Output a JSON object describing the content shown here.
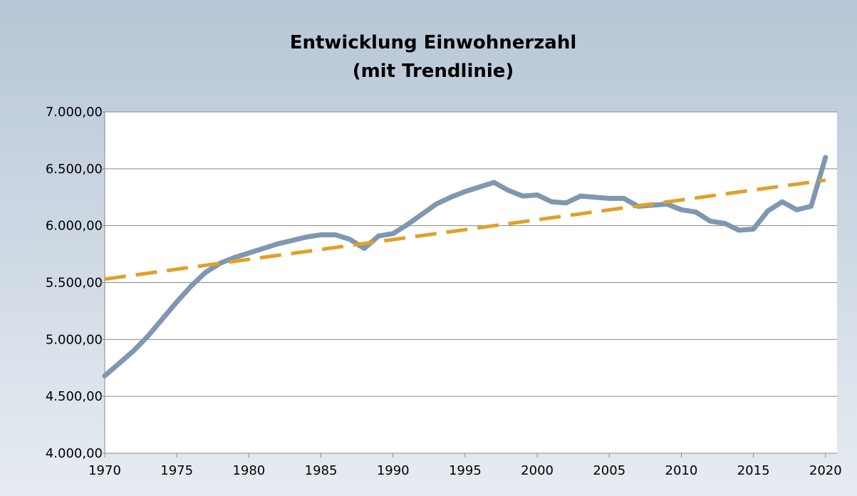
{
  "chart_data": {
    "type": "line",
    "title": [
      "Entwicklung Einwohnerzahl",
      "(mit Trendlinie)"
    ],
    "series": [
      {
        "color": "#7f97b0",
        "dashed": false,
        "x": [
          1970,
          1971,
          1972,
          1973,
          1974,
          1975,
          1976,
          1977,
          1978,
          1979,
          1980,
          1981,
          1982,
          1983,
          1984,
          1985,
          1986,
          1987,
          1988,
          1989,
          1990,
          1991,
          1992,
          1993,
          1994,
          1995,
          1996,
          1997,
          1998,
          1999,
          2000,
          2001,
          2002,
          2003,
          2004,
          2005,
          2006,
          2007,
          2008,
          2009,
          2010,
          2011,
          2012,
          2013,
          2014,
          2015,
          2016,
          2017,
          2018,
          2019,
          2020
        ],
        "values": [
          4680,
          4790,
          4900,
          5030,
          5180,
          5330,
          5470,
          5590,
          5670,
          5720,
          5760,
          5800,
          5840,
          5870,
          5900,
          5920,
          5920,
          5880,
          5800,
          5910,
          5930,
          6010,
          6100,
          6190,
          6250,
          6300,
          6340,
          6380,
          6310,
          6260,
          6270,
          6210,
          6200,
          6260,
          6250,
          6240,
          6240,
          6170,
          6180,
          6190,
          6140,
          6120,
          6040,
          6020,
          5960,
          5970,
          6130,
          6210,
          6140,
          6170,
          6600
        ]
      },
      {
        "color": "#e0a02a",
        "dashed": true,
        "x": [
          1970,
          2020
        ],
        "values": [
          5530,
          6400
        ]
      }
    ],
    "xlim": [
      1970,
      2020.8
    ],
    "xticks": [
      1970,
      1975,
      1980,
      1985,
      1990,
      1995,
      2000,
      2005,
      2010,
      2015,
      2020
    ],
    "ylim": [
      4000,
      7000
    ],
    "yticks": [
      {
        "value": 4000,
        "label": "4.000,00"
      },
      {
        "value": 4500,
        "label": "4.500,00"
      },
      {
        "value": 5000,
        "label": "5.000,00"
      },
      {
        "value": 5500,
        "label": "5.500,00"
      },
      {
        "value": 6000,
        "label": "6.000,00"
      },
      {
        "value": 6500,
        "label": "6.500,00"
      },
      {
        "value": 7000,
        "label": "7.000,00"
      }
    ],
    "grid": true
  }
}
